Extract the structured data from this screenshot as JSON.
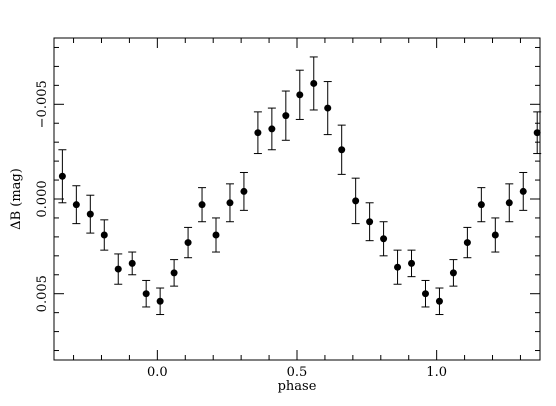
{
  "chart_data": {
    "type": "scatter",
    "title": "",
    "xlabel": "phase",
    "ylabel": "ΔB (mag)",
    "xlim": [
      -0.37,
      1.37
    ],
    "ylim": [
      0.0085,
      -0.0085
    ],
    "y_inverted": true,
    "grid": false,
    "x_ticks": [
      0.0,
      0.5,
      1.0
    ],
    "x_tick_labels": [
      "0.0",
      "0.5",
      "1.0"
    ],
    "y_ticks": [
      0.005,
      0.0,
      -0.005
    ],
    "y_tick_labels": [
      "0.005",
      "0.000",
      "−0.005"
    ],
    "series": [
      {
        "points": [
          {
            "x": -0.34,
            "y": -0.0012,
            "err": 0.0014
          },
          {
            "x": -0.29,
            "y": 0.0003,
            "err": 0.001
          },
          {
            "x": -0.24,
            "y": 0.0008,
            "err": 0.001
          },
          {
            "x": -0.19,
            "y": 0.0019,
            "err": 0.0008
          },
          {
            "x": -0.14,
            "y": 0.0037,
            "err": 0.0008
          },
          {
            "x": -0.09,
            "y": 0.0034,
            "err": 0.0006
          },
          {
            "x": -0.04,
            "y": 0.005,
            "err": 0.0007
          },
          {
            "x": 0.01,
            "y": 0.0054,
            "err": 0.0007
          },
          {
            "x": 0.06,
            "y": 0.0039,
            "err": 0.0007
          },
          {
            "x": 0.11,
            "y": 0.0023,
            "err": 0.0008
          },
          {
            "x": 0.16,
            "y": 0.0003,
            "err": 0.0009
          },
          {
            "x": 0.21,
            "y": 0.0019,
            "err": 0.0009
          },
          {
            "x": 0.26,
            "y": 0.0002,
            "err": 0.001
          },
          {
            "x": 0.31,
            "y": -0.0004,
            "err": 0.001
          },
          {
            "x": 0.36,
            "y": -0.0035,
            "err": 0.0011
          },
          {
            "x": 0.41,
            "y": -0.0037,
            "err": 0.0011
          },
          {
            "x": 0.46,
            "y": -0.0044,
            "err": 0.0013
          },
          {
            "x": 0.51,
            "y": -0.0055,
            "err": 0.0013
          },
          {
            "x": 0.56,
            "y": -0.0061,
            "err": 0.0014
          },
          {
            "x": 0.61,
            "y": -0.0048,
            "err": 0.0014
          },
          {
            "x": 0.66,
            "y": -0.0026,
            "err": 0.0013
          },
          {
            "x": 0.71,
            "y": 0.0001,
            "err": 0.0012
          },
          {
            "x": 0.76,
            "y": 0.0012,
            "err": 0.001
          },
          {
            "x": 0.81,
            "y": 0.0021,
            "err": 0.0009
          },
          {
            "x": 0.86,
            "y": 0.0036,
            "err": 0.0009
          },
          {
            "x": 0.91,
            "y": 0.0034,
            "err": 0.0007
          },
          {
            "x": 0.96,
            "y": 0.005,
            "err": 0.0007
          },
          {
            "x": 1.01,
            "y": 0.0054,
            "err": 0.0007
          },
          {
            "x": 1.06,
            "y": 0.0039,
            "err": 0.0007
          },
          {
            "x": 1.11,
            "y": 0.0023,
            "err": 0.0008
          },
          {
            "x": 1.16,
            "y": 0.0003,
            "err": 0.0009
          },
          {
            "x": 1.21,
            "y": 0.0019,
            "err": 0.0009
          },
          {
            "x": 1.26,
            "y": 0.0002,
            "err": 0.001
          },
          {
            "x": 1.31,
            "y": -0.0004,
            "err": 0.001
          },
          {
            "x": 1.36,
            "y": -0.0035,
            "err": 0.0011
          }
        ]
      }
    ]
  }
}
